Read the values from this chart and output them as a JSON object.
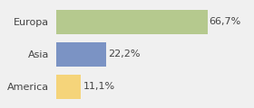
{
  "categories": [
    "Europa",
    "Asia",
    "America"
  ],
  "values": [
    66.7,
    22.2,
    11.1
  ],
  "labels": [
    "66,7%",
    "22,2%",
    "11,1%"
  ],
  "bar_colors": [
    "#b5c98e",
    "#7b93c4",
    "#f5d47a"
  ],
  "background_color": "#f0f0f0",
  "xlim": [
    0,
    85
  ],
  "label_fontsize": 8,
  "tick_fontsize": 8,
  "bar_height": 0.75
}
